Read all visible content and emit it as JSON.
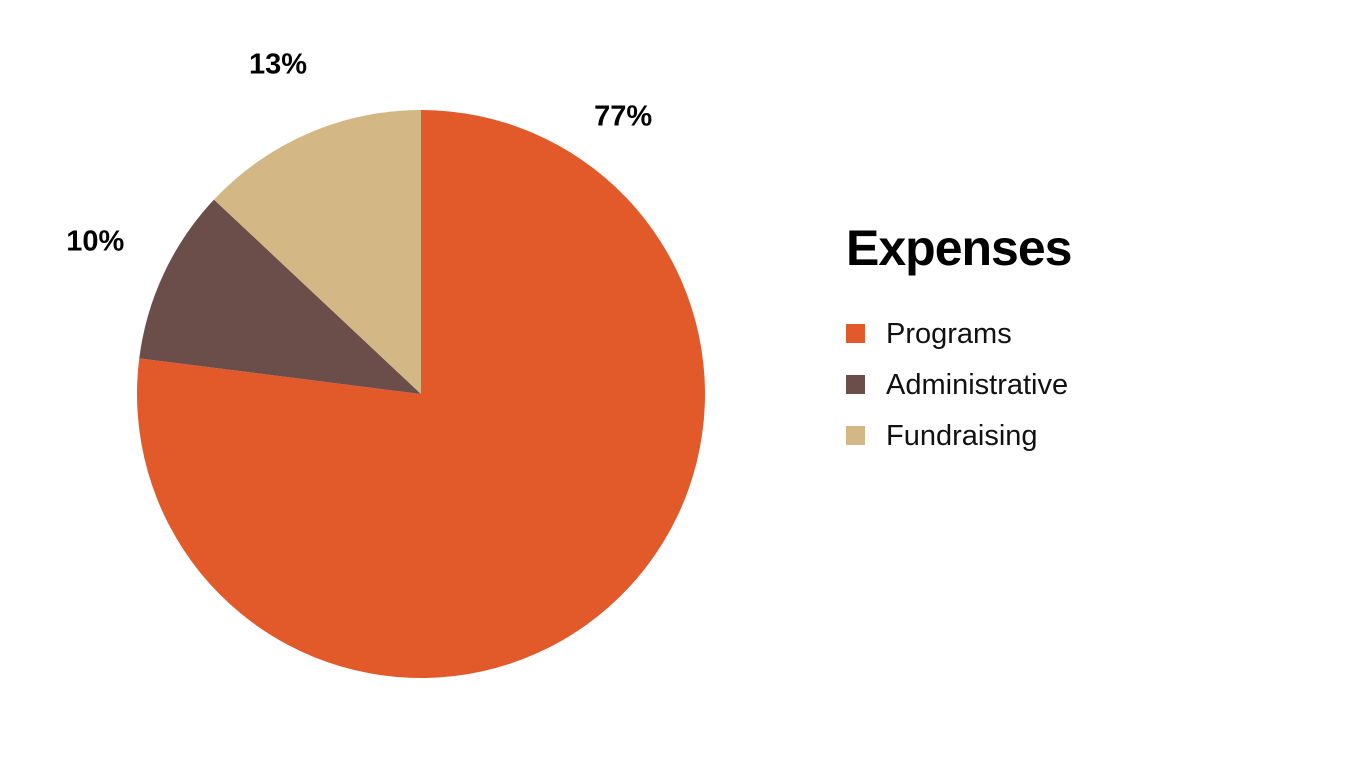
{
  "chart_data": {
    "type": "pie",
    "title": "Expenses",
    "categories": [
      "Programs",
      "Administrative",
      "Fundraising"
    ],
    "values": [
      77,
      10,
      13
    ],
    "data_labels": [
      "77%",
      "10%",
      "13%"
    ],
    "colors": [
      "#e2592a",
      "#6b4d4a",
      "#d3b886"
    ],
    "legend_position": "right",
    "start_angle": "top, clockwise"
  }
}
